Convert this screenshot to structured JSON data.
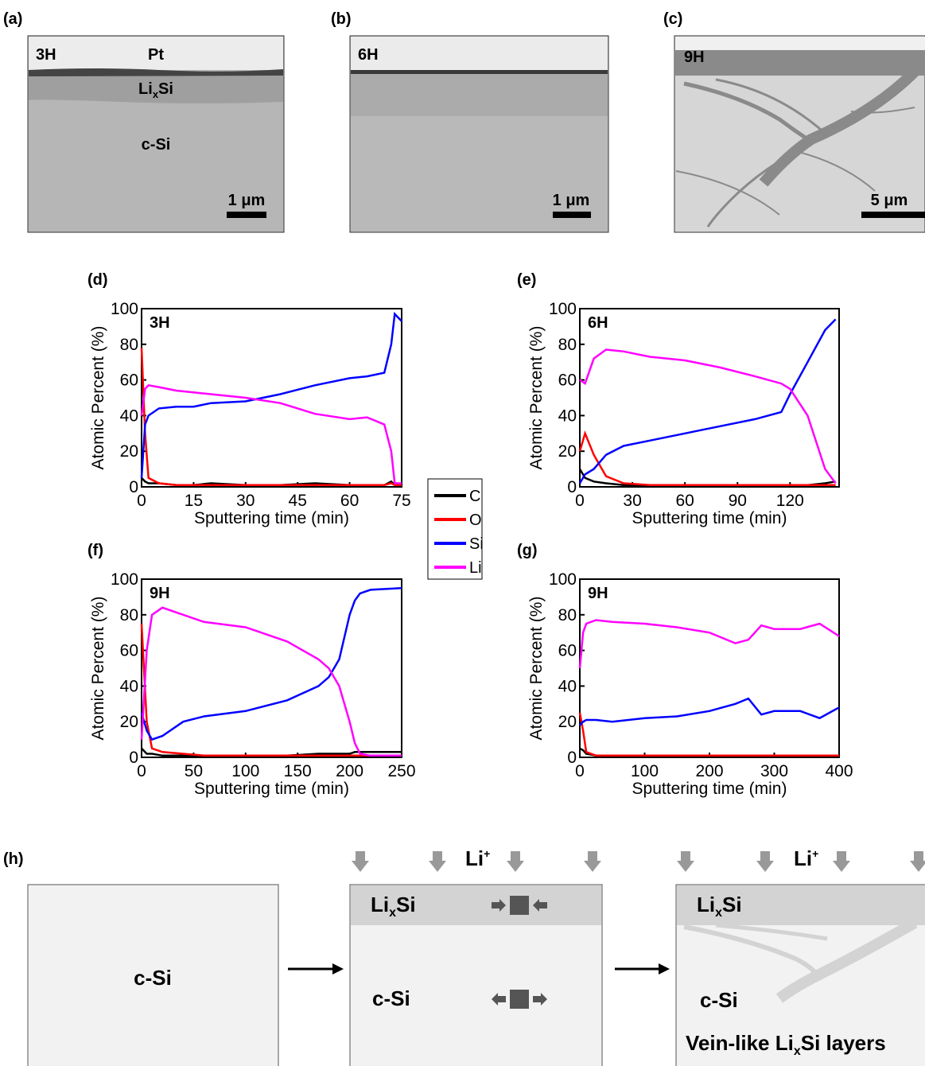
{
  "images": [
    {
      "label": "(a)",
      "tag": "3H",
      "top": "Pt",
      "layer": {
        "base": "Li",
        "sub": "x",
        "rest": "Si"
      },
      "bulk": "c-Si",
      "scale": "1 μm"
    },
    {
      "label": "(b)",
      "tag": "6H",
      "scale": "1 μm"
    },
    {
      "label": "(c)",
      "tag": "9H",
      "scale": "5 μm"
    }
  ],
  "chart_data": [
    {
      "type": "line",
      "label": "(d)",
      "tag": "3H",
      "xlabel": "Sputtering time (min)",
      "ylabel": "Atomic Percent (%)",
      "x": [
        0,
        1,
        2,
        5,
        10,
        15,
        20,
        30,
        40,
        50,
        60,
        65,
        70,
        72,
        73,
        75
      ],
      "xlim": [
        0,
        75
      ],
      "xticks": [
        0,
        15,
        30,
        45,
        60,
        75
      ],
      "ylim": [
        0,
        100
      ],
      "yticks": [
        0,
        20,
        40,
        60,
        80,
        100
      ],
      "series": [
        {
          "name": "C",
          "color": "#000000",
          "values": [
            5,
            3,
            2,
            2,
            1,
            1,
            2,
            1,
            1,
            2,
            1,
            1,
            1,
            3,
            1,
            1
          ]
        },
        {
          "name": "O",
          "color": "#ff0000",
          "values": [
            78,
            30,
            5,
            2,
            1,
            1,
            1,
            1,
            1,
            1,
            1,
            1,
            1,
            2,
            1,
            1
          ]
        },
        {
          "name": "Si",
          "color": "#0000ff",
          "values": [
            5,
            35,
            40,
            44,
            45,
            45,
            47,
            48,
            52,
            57,
            61,
            62,
            64,
            80,
            97,
            93
          ]
        },
        {
          "name": "Li",
          "color": "#ff00ff",
          "values": [
            40,
            55,
            57,
            56,
            54,
            53,
            52,
            50,
            47,
            41,
            38,
            39,
            35,
            20,
            2,
            2
          ]
        }
      ]
    },
    {
      "type": "line",
      "label": "(e)",
      "tag": "6H",
      "xlabel": "Sputtering time (min)",
      "ylabel": "Atomic Percent (%)",
      "x": [
        0,
        3,
        8,
        15,
        25,
        40,
        60,
        80,
        100,
        115,
        120,
        130,
        140,
        146
      ],
      "xlim": [
        0,
        148
      ],
      "xticks": [
        0,
        30,
        60,
        90,
        120
      ],
      "ylim": [
        0,
        100
      ],
      "yticks": [
        0,
        20,
        40,
        60,
        80,
        100
      ],
      "series": [
        {
          "name": "C",
          "color": "#000000",
          "values": [
            10,
            5,
            3,
            2,
            1,
            1,
            1,
            1,
            1,
            1,
            1,
            1,
            2,
            3
          ]
        },
        {
          "name": "O",
          "color": "#ff0000",
          "values": [
            20,
            30,
            18,
            6,
            2,
            1,
            1,
            1,
            1,
            1,
            1,
            1,
            1,
            1
          ]
        },
        {
          "name": "Si",
          "color": "#0000ff",
          "values": [
            2,
            7,
            10,
            18,
            23,
            26,
            30,
            34,
            38,
            42,
            52,
            70,
            88,
            94
          ]
        },
        {
          "name": "Li",
          "color": "#ff00ff",
          "values": [
            60,
            58,
            72,
            77,
            76,
            73,
            71,
            67,
            62,
            58,
            55,
            40,
            10,
            2
          ]
        }
      ]
    },
    {
      "type": "line",
      "label": "(f)",
      "tag": "9H",
      "xlabel": "Sputtering time (min)",
      "ylabel": "Atomic Percent (%)",
      "x": [
        0,
        5,
        10,
        20,
        40,
        60,
        100,
        140,
        170,
        180,
        190,
        200,
        205,
        210,
        220,
        250
      ],
      "xlim": [
        0,
        250
      ],
      "xticks": [
        0,
        50,
        100,
        150,
        200,
        250
      ],
      "ylim": [
        0,
        100
      ],
      "yticks": [
        0,
        20,
        40,
        60,
        80,
        100
      ],
      "series": [
        {
          "name": "C",
          "color": "#000000",
          "values": [
            5,
            2,
            2,
            1,
            1,
            1,
            1,
            1,
            2,
            2,
            2,
            2,
            3,
            3,
            3,
            3
          ]
        },
        {
          "name": "O",
          "color": "#ff0000",
          "values": [
            75,
            20,
            5,
            3,
            2,
            1,
            1,
            1,
            1,
            1,
            1,
            1,
            1,
            1,
            1,
            1
          ]
        },
        {
          "name": "Si",
          "color": "#0000ff",
          "values": [
            25,
            15,
            10,
            12,
            20,
            23,
            26,
            32,
            40,
            45,
            55,
            80,
            88,
            92,
            94,
            95
          ]
        },
        {
          "name": "Li",
          "color": "#ff00ff",
          "values": [
            10,
            60,
            80,
            84,
            80,
            76,
            73,
            65,
            55,
            50,
            40,
            20,
            8,
            2,
            1,
            1
          ]
        }
      ]
    },
    {
      "type": "line",
      "label": "(g)",
      "tag": "9H",
      "xlabel": "Sputtering time (min)",
      "ylabel": "Atomic Percent (%)",
      "x": [
        0,
        5,
        10,
        25,
        50,
        100,
        150,
        200,
        240,
        260,
        280,
        300,
        340,
        370,
        400
      ],
      "xlim": [
        0,
        400
      ],
      "xticks": [
        0,
        100,
        200,
        300,
        400
      ],
      "ylim": [
        0,
        100
      ],
      "yticks": [
        0,
        20,
        40,
        60,
        80,
        100
      ],
      "series": [
        {
          "name": "C",
          "color": "#000000",
          "values": [
            5,
            4,
            2,
            1,
            1,
            1,
            1,
            1,
            1,
            1,
            1,
            1,
            1,
            1,
            1
          ]
        },
        {
          "name": "O",
          "color": "#ff0000",
          "values": [
            25,
            15,
            3,
            1,
            1,
            1,
            1,
            1,
            1,
            1,
            1,
            1,
            1,
            1,
            1
          ]
        },
        {
          "name": "Si",
          "color": "#0000ff",
          "values": [
            18,
            20,
            21,
            21,
            20,
            22,
            23,
            26,
            30,
            33,
            24,
            26,
            26,
            22,
            28
          ]
        },
        {
          "name": "Li",
          "color": "#ff00ff",
          "values": [
            50,
            70,
            75,
            77,
            76,
            75,
            73,
            70,
            64,
            66,
            74,
            72,
            72,
            75,
            68
          ]
        }
      ]
    }
  ],
  "diagram": {
    "label": "(h)",
    "panels": [
      {
        "bulk": "c-Si"
      },
      {
        "ion": {
          "base": "Li",
          "sup": "+"
        },
        "layer": {
          "base": "Li",
          "sub": "x",
          "rest": "Si"
        },
        "bulk": "c-Si"
      },
      {
        "ion": {
          "base": "Li",
          "sup": "+"
        },
        "layer": {
          "base": "Li",
          "sub": "x",
          "rest": "Si"
        },
        "bulk": "c-Si",
        "note": {
          "base": "Vein-like Li",
          "sub": "x",
          "rest": "Si layers"
        }
      }
    ]
  }
}
